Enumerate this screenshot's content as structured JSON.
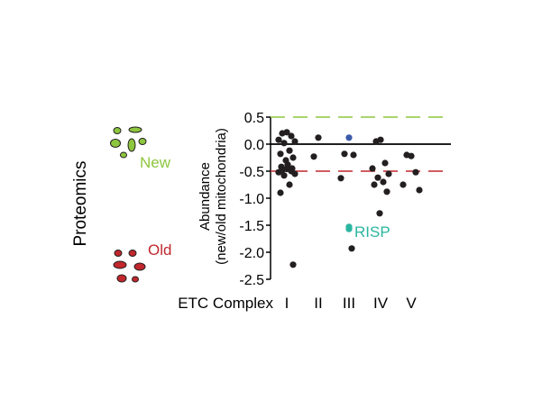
{
  "side_label": "Proteomics",
  "new_label": "New",
  "old_label": "Old",
  "colors": {
    "new": "#8dc63f",
    "old": "#c1272d",
    "points": "#231f20",
    "blue_point": "#3b5ba9",
    "risp": "#2bb5a0"
  },
  "chart_data": {
    "type": "scatter",
    "ylabel_line1": "Abundance",
    "ylabel_line2": "(new/old mitochondria)",
    "xlabel": "ETC Complex",
    "categories": [
      "I",
      "II",
      "III",
      "IV",
      "V"
    ],
    "ylim": [
      -2.5,
      0.5
    ],
    "yticks": [
      "0.5",
      "0.0",
      "-0.5",
      "-1.0",
      "-1.5",
      "-2.0",
      "-2.5"
    ],
    "reference_lines": [
      {
        "y": 0.5,
        "color": "#8dc63f",
        "style": "dashed"
      },
      {
        "y": 0.0,
        "color": "#000000",
        "style": "solid"
      },
      {
        "y": -0.5,
        "color": "#c1272d",
        "style": "dashed"
      }
    ],
    "points": [
      {
        "category": "I",
        "y": 0.22
      },
      {
        "category": "I",
        "y": 0.2
      },
      {
        "category": "I",
        "y": 0.15
      },
      {
        "category": "I",
        "y": 0.08
      },
      {
        "category": "I",
        "y": 0.05
      },
      {
        "category": "I",
        "y": 0.02
      },
      {
        "category": "I",
        "y": -0.12
      },
      {
        "category": "I",
        "y": -0.18
      },
      {
        "category": "I",
        "y": -0.25
      },
      {
        "category": "I",
        "y": -0.3
      },
      {
        "category": "I",
        "y": -0.38
      },
      {
        "category": "I",
        "y": -0.42
      },
      {
        "category": "I",
        "y": -0.45
      },
      {
        "category": "I",
        "y": -0.46
      },
      {
        "category": "I",
        "y": -0.48
      },
      {
        "category": "I",
        "y": -0.5
      },
      {
        "category": "I",
        "y": -0.52
      },
      {
        "category": "I",
        "y": -0.55
      },
      {
        "category": "I",
        "y": -0.58
      },
      {
        "category": "I",
        "y": -0.75
      },
      {
        "category": "I",
        "y": -0.9
      },
      {
        "category": "I",
        "y": -2.23
      },
      {
        "category": "II",
        "y": 0.12
      },
      {
        "category": "II",
        "y": -0.23
      },
      {
        "category": "III",
        "y": 0.12,
        "highlight": "blue"
      },
      {
        "category": "III",
        "y": -0.18
      },
      {
        "category": "III",
        "y": -0.2
      },
      {
        "category": "III",
        "y": -0.63
      },
      {
        "category": "III",
        "y": -1.53,
        "highlight": "risp"
      },
      {
        "category": "III",
        "y": -1.57,
        "highlight": "risp"
      },
      {
        "category": "III",
        "y": -1.93
      },
      {
        "category": "IV",
        "y": 0.08
      },
      {
        "category": "IV",
        "y": 0.05
      },
      {
        "category": "IV",
        "y": -0.35
      },
      {
        "category": "IV",
        "y": -0.45
      },
      {
        "category": "IV",
        "y": -0.55
      },
      {
        "category": "IV",
        "y": -0.62
      },
      {
        "category": "IV",
        "y": -0.7
      },
      {
        "category": "IV",
        "y": -0.75
      },
      {
        "category": "IV",
        "y": -0.88
      },
      {
        "category": "IV",
        "y": -1.28
      },
      {
        "category": "V",
        "y": -0.22
      },
      {
        "category": "V",
        "y": -0.2
      },
      {
        "category": "V",
        "y": -0.52
      },
      {
        "category": "V",
        "y": -0.75
      },
      {
        "category": "V",
        "y": -0.85
      }
    ],
    "annotations": [
      {
        "text": "RISP",
        "category": "III",
        "y": -1.6
      }
    ]
  }
}
